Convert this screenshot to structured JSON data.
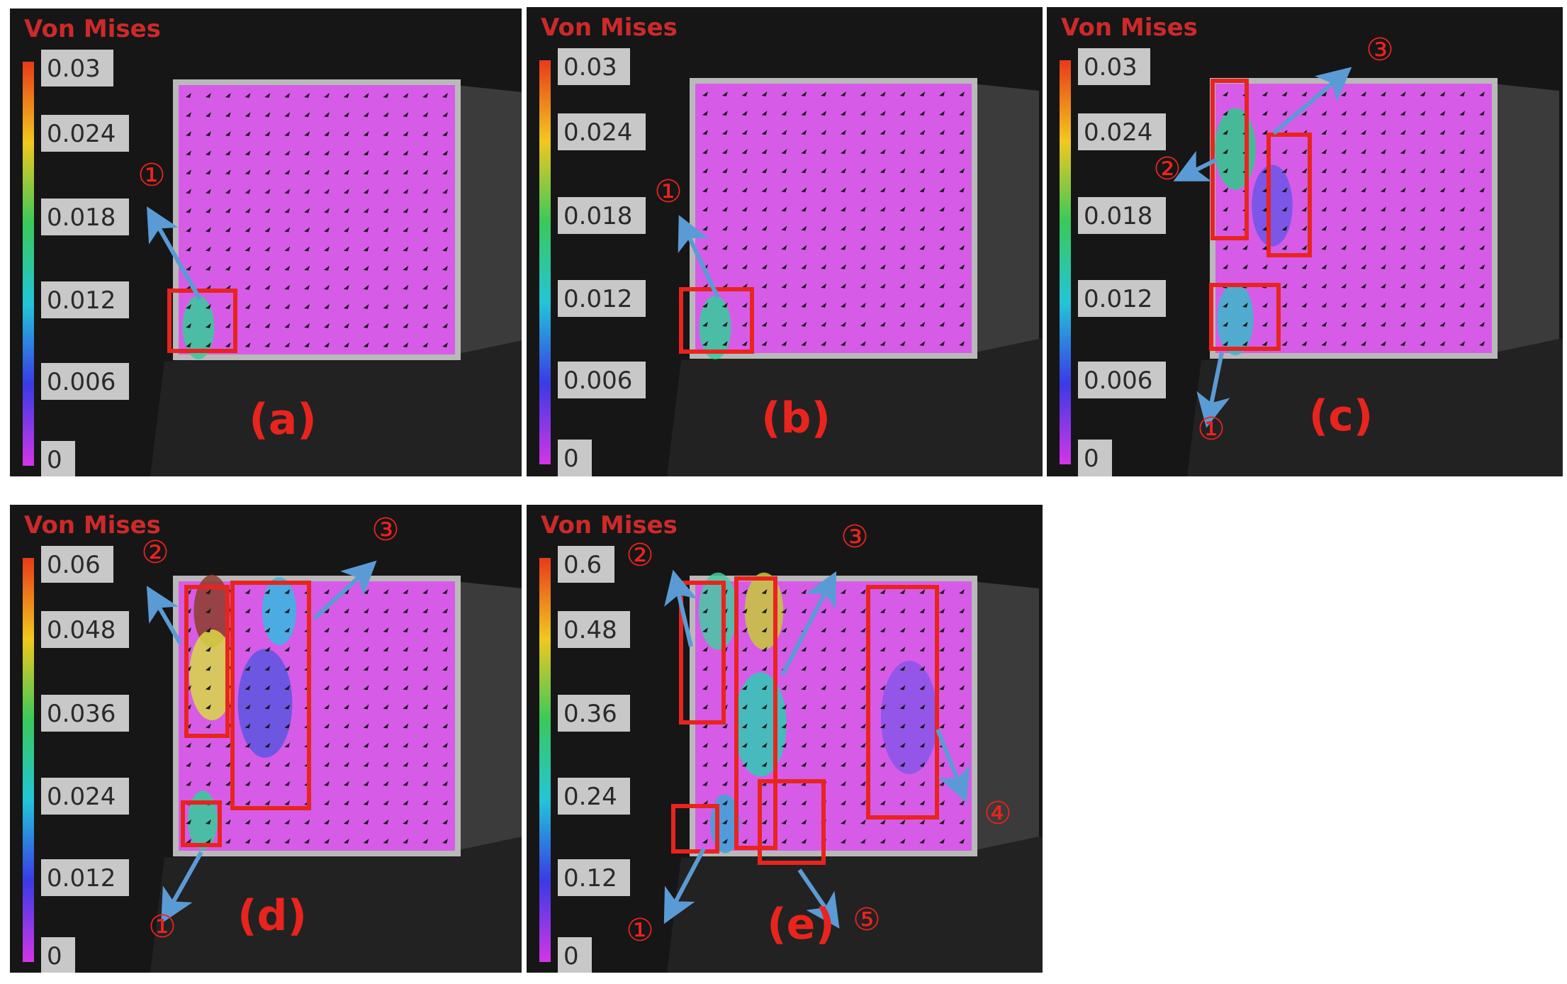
{
  "figure": {
    "panels": [
      {
        "id": "a",
        "title": "Von Mises",
        "label": "(a)",
        "scale_ticks": [
          "0.03",
          "0.024",
          "0.018",
          "0.012",
          "0.006",
          "0"
        ],
        "markers": [
          "①"
        ]
      },
      {
        "id": "b",
        "title": "Von Mises",
        "label": "(b)",
        "scale_ticks": [
          "0.03",
          "0.024",
          "0.018",
          "0.012",
          "0.006",
          "0"
        ],
        "markers": [
          "①"
        ]
      },
      {
        "id": "c",
        "title": "Von Mises",
        "label": "(c)",
        "scale_ticks": [
          "0.03",
          "0.024",
          "0.018",
          "0.012",
          "0.006",
          "0"
        ],
        "markers": [
          "①",
          "②",
          "③"
        ]
      },
      {
        "id": "d",
        "title": "Von Mises",
        "label": "(d)",
        "scale_ticks": [
          "0.06",
          "0.048",
          "0.036",
          "0.024",
          "0.012",
          "0"
        ],
        "markers": [
          "①",
          "②",
          "③"
        ]
      },
      {
        "id": "e",
        "title": "Von Mises",
        "label": "(e)",
        "scale_ticks": [
          "0.6",
          "0.48",
          "0.36",
          "0.24",
          "0.12",
          "0"
        ],
        "markers": [
          "①",
          "②",
          "③",
          "④",
          "⑤"
        ]
      }
    ],
    "colors": {
      "panel_background": "#161616",
      "specimen_contour": "#d65ce8",
      "specimen_edge": "#b9b9b9",
      "highlight_box": "#e8241e",
      "arrow": "#5b9bd5",
      "text_red": "#cc2a2a",
      "tick_box": "#c8c8c8"
    }
  }
}
